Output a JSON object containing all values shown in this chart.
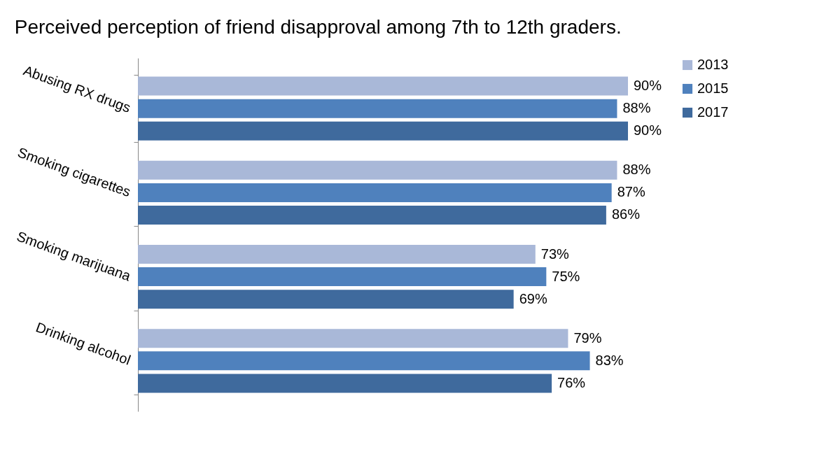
{
  "chart_data": {
    "type": "bar",
    "orientation": "horizontal",
    "title": "Perceived perception of friend disapproval among 7th to 12th graders.",
    "categories": [
      "Abusing RX drugs",
      "Smoking cigarettes",
      "Smoking marijuana",
      "Drinking alcohol"
    ],
    "series": [
      {
        "name": "2013",
        "color": "#a9b8d8",
        "values": [
          90,
          88,
          73,
          79
        ],
        "value_labels": [
          "90%",
          "88%",
          "73%",
          "79%"
        ]
      },
      {
        "name": "2015",
        "color": "#4f81bd",
        "values": [
          88,
          87,
          75,
          83
        ],
        "value_labels": [
          "88%",
          "87%",
          "75%",
          "83%"
        ]
      },
      {
        "name": "2017",
        "color": "#3f6a9d",
        "values": [
          90,
          86,
          69,
          76
        ],
        "value_labels": [
          "90%",
          "86%",
          "69%",
          "76%"
        ]
      }
    ],
    "legend": "right",
    "grid": false
  }
}
